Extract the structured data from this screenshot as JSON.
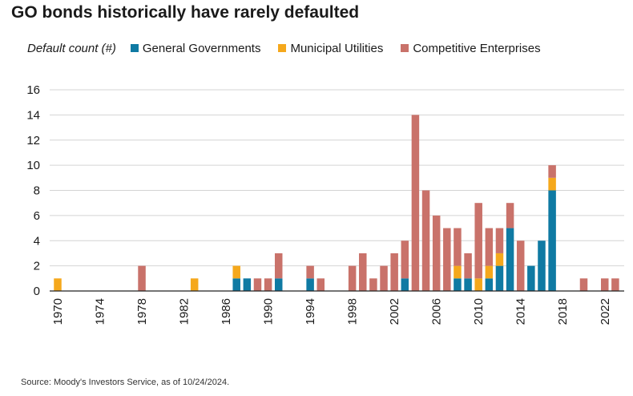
{
  "title": "GO bonds historically have rarely defaulted",
  "source": "Source: Moody's Investors Service, as of 10/24/2024.",
  "chart_data": {
    "type": "bar",
    "stacked": true,
    "title": "GO bonds historically have rarely defaulted",
    "ylabel": "Default count (#)",
    "xlabel": "",
    "ylim": [
      0,
      16
    ],
    "yticks": [
      0,
      2,
      4,
      6,
      8,
      10,
      12,
      14,
      16
    ],
    "grid": true,
    "legend_position": "top",
    "x_tick_labels": [
      "1970",
      "1974",
      "1978",
      "1982",
      "1986",
      "1990",
      "1994",
      "1998",
      "2002",
      "2006",
      "2010",
      "2014",
      "2018",
      "2022"
    ],
    "categories": [
      "1970",
      "1971",
      "1972",
      "1973",
      "1974",
      "1975",
      "1976",
      "1977",
      "1978",
      "1979",
      "1980",
      "1981",
      "1982",
      "1983",
      "1984",
      "1985",
      "1986",
      "1987",
      "1988",
      "1989",
      "1990",
      "1991",
      "1992",
      "1993",
      "1994",
      "1995",
      "1996",
      "1997",
      "1998",
      "1999",
      "2000",
      "2001",
      "2002",
      "2003",
      "2004",
      "2005",
      "2006",
      "2007",
      "2008",
      "2009",
      "2010",
      "2011",
      "2012",
      "2013",
      "2014",
      "2015",
      "2016",
      "2017",
      "2018",
      "2019",
      "2020",
      "2021",
      "2022",
      "2023"
    ],
    "series": [
      {
        "name": "General Governments",
        "color": "#0f7aa3",
        "values": [
          0,
          0,
          0,
          0,
          0,
          0,
          0,
          0,
          0,
          0,
          0,
          0,
          0,
          0,
          0,
          0,
          0,
          1,
          1,
          0,
          0,
          1,
          0,
          0,
          1,
          0,
          0,
          0,
          0,
          0,
          0,
          0,
          0,
          1,
          0,
          0,
          0,
          0,
          1,
          1,
          0,
          1,
          2,
          5,
          0,
          2,
          4,
          8,
          0,
          0,
          0,
          0,
          0,
          0
        ]
      },
      {
        "name": "Municipal Utilities",
        "color": "#f5a81c",
        "values": [
          1,
          0,
          0,
          0,
          0,
          0,
          0,
          0,
          0,
          0,
          0,
          0,
          0,
          1,
          0,
          0,
          0,
          1,
          0,
          0,
          0,
          0,
          0,
          0,
          0,
          0,
          0,
          0,
          0,
          0,
          0,
          0,
          0,
          0,
          0,
          0,
          0,
          0,
          1,
          0,
          1,
          1,
          1,
          0,
          0,
          0,
          0,
          1,
          0,
          0,
          0,
          0,
          0,
          0
        ]
      },
      {
        "name": "Competitive Enterprises",
        "color": "#c9726a",
        "values": [
          0,
          0,
          0,
          0,
          0,
          0,
          0,
          0,
          2,
          0,
          0,
          0,
          0,
          0,
          0,
          0,
          0,
          0,
          0,
          1,
          1,
          2,
          0,
          0,
          1,
          1,
          0,
          0,
          2,
          3,
          1,
          2,
          3,
          3,
          14,
          8,
          6,
          5,
          3,
          2,
          6,
          3,
          2,
          2,
          4,
          0,
          0,
          1,
          0,
          0,
          1,
          0,
          1,
          1
        ]
      }
    ]
  }
}
